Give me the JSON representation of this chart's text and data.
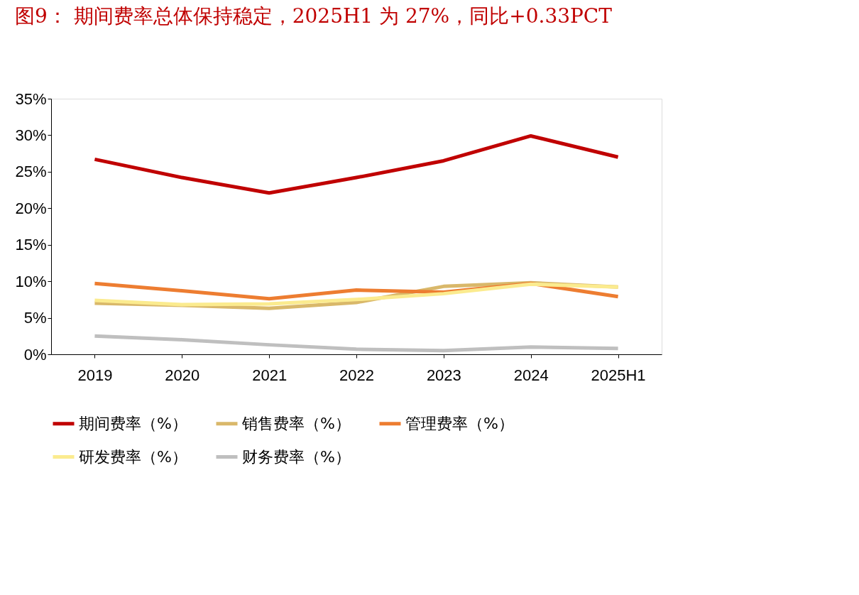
{
  "chart_data": {
    "type": "line",
    "title": "图9：  期间费率总体保持稳定，2025H1 为 27%，同比+0.33PCT",
    "categories": [
      "2019",
      "2020",
      "2021",
      "2022",
      "2023",
      "2024",
      "2025H1"
    ],
    "series": [
      {
        "name": "期间费率（%）",
        "color": "#c00000",
        "values": [
          26.7,
          24.2,
          22.1,
          24.2,
          26.5,
          29.9,
          27.0
        ]
      },
      {
        "name": "销售费率（%）",
        "color": "#d9b86a",
        "values": [
          7.0,
          6.7,
          6.3,
          7.1,
          9.3,
          9.8,
          9.2
        ]
      },
      {
        "name": "管理费率（%）",
        "color": "#ed7d31",
        "values": [
          9.7,
          8.7,
          7.6,
          8.8,
          8.5,
          9.7,
          7.9
        ]
      },
      {
        "name": "研发费率（%）",
        "color": "#fbeb8f",
        "values": [
          7.4,
          6.8,
          6.9,
          7.5,
          8.3,
          9.6,
          9.2
        ]
      },
      {
        "name": "财务费率（%）",
        "color": "#bfbfbf",
        "values": [
          2.5,
          2.0,
          1.3,
          0.7,
          0.5,
          1.0,
          0.8
        ]
      }
    ],
    "ylim": [
      0,
      35
    ],
    "yticks": [
      {
        "value": 0,
        "label": "0%"
      },
      {
        "value": 5,
        "label": "5%"
      },
      {
        "value": 10,
        "label": "10%"
      },
      {
        "value": 15,
        "label": "15%"
      },
      {
        "value": 20,
        "label": "20%"
      },
      {
        "value": 25,
        "label": "25%"
      },
      {
        "value": 30,
        "label": "30%"
      },
      {
        "value": 35,
        "label": "35%"
      }
    ],
    "grid": false,
    "legend": "bottom",
    "marker": "none",
    "line_style": "solid"
  }
}
